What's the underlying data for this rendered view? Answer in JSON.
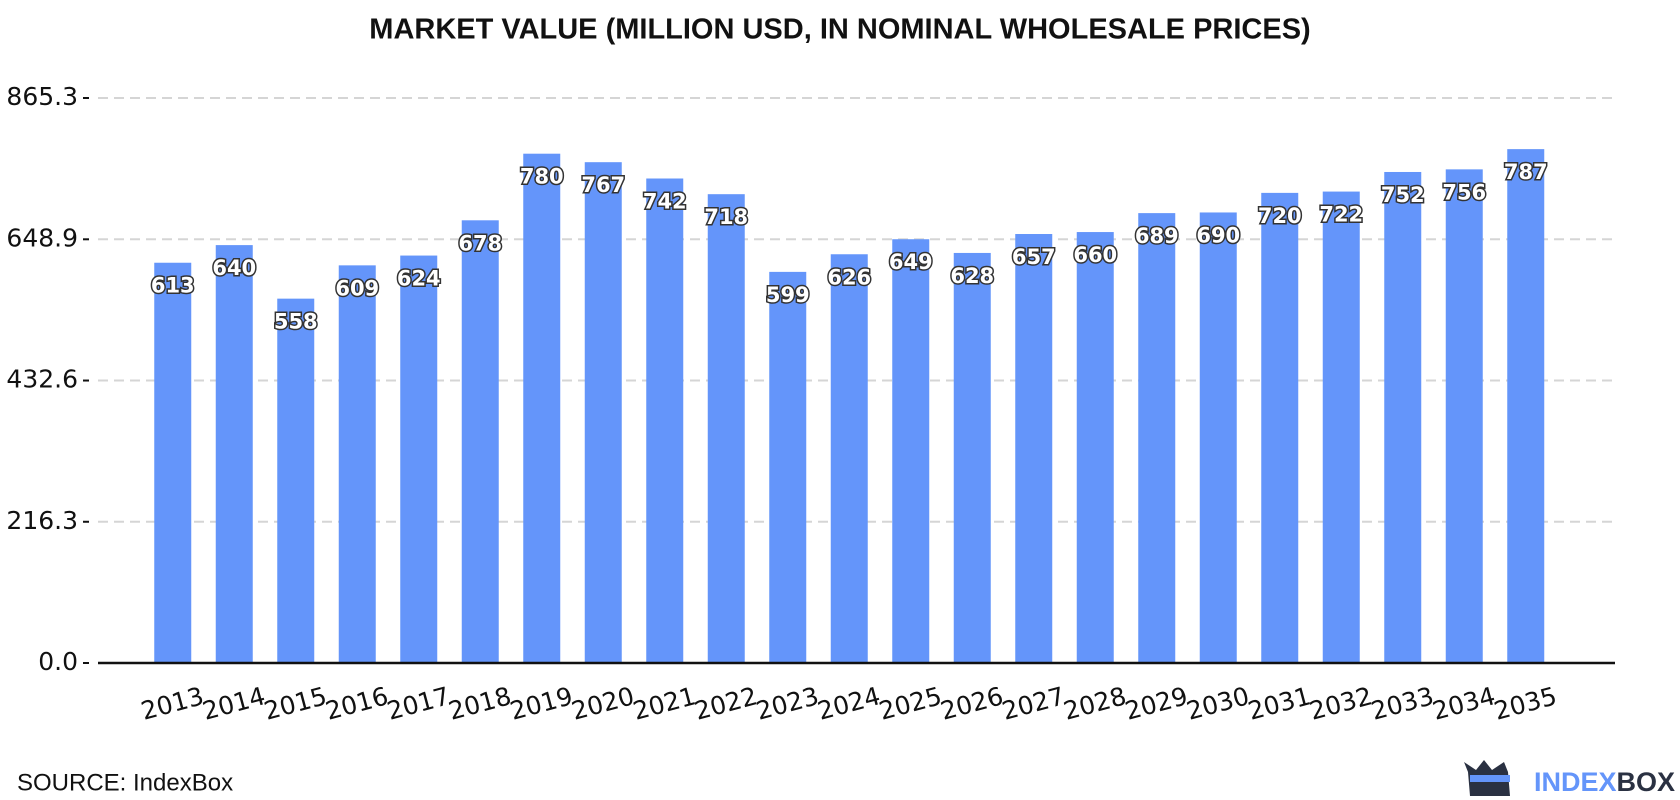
{
  "chart_data": {
    "type": "bar",
    "title": "MARKET VALUE (MILLION USD, IN NOMINAL WHOLESALE PRICES)",
    "categories": [
      "2013",
      "2014",
      "2015",
      "2016",
      "2017",
      "2018",
      "2019",
      "2020",
      "2021",
      "2022",
      "2023",
      "2024",
      "2025",
      "2026",
      "2027",
      "2028",
      "2029",
      "2030",
      "2031",
      "2032",
      "2033",
      "2034",
      "2035"
    ],
    "values": [
      613,
      640,
      558,
      609,
      624,
      678,
      780,
      767,
      742,
      718,
      599,
      626,
      649,
      628,
      657,
      660,
      689,
      690,
      720,
      722,
      752,
      756,
      787
    ],
    "color": "#6495fa",
    "ylim": [
      0,
      865.3
    ],
    "yticks": [
      {
        "value": 0,
        "label": "0.0"
      },
      216.3,
      432.6,
      648.9,
      865.3
    ],
    "grid": true
  },
  "footer": {
    "source": "SOURCE: IndexBox",
    "brand": [
      "INDEX",
      "BOX"
    ]
  }
}
